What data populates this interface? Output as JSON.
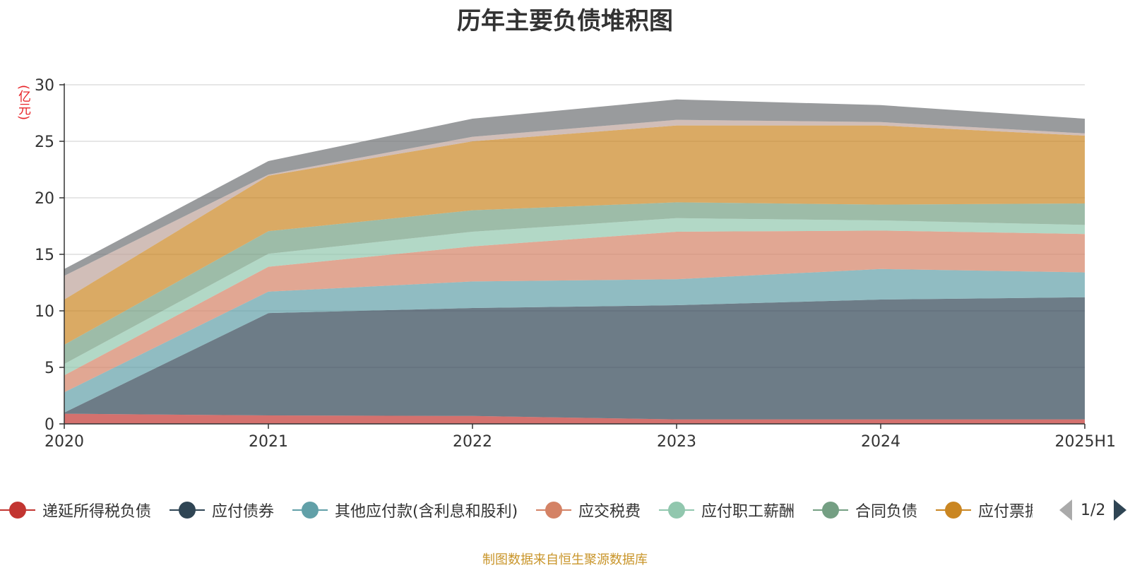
{
  "title": "历年主要负债堆积图",
  "unit_label": "(亿元)",
  "source_note": "制图数据来自恒生聚源数据库",
  "legend": {
    "page_indicator": "1/2",
    "items": [
      {
        "name": "递延所得税负债",
        "color": "#c23531"
      },
      {
        "name": "应付债券",
        "color": "#2f4554"
      },
      {
        "name": "其他应付款(含利息和股利)",
        "color": "#61a0a8"
      },
      {
        "name": "应交税费",
        "color": "#d48265"
      },
      {
        "name": "应付职工薪酬",
        "color": "#91c7ae"
      },
      {
        "name": "合同负债",
        "color": "#749f83"
      },
      {
        "name": "应付票据及应付账款",
        "color": "#ca8622"
      }
    ]
  },
  "chart_data": {
    "type": "area",
    "stacked": true,
    "categories": [
      "2020",
      "2021",
      "2022",
      "2023",
      "2024",
      "2025H1"
    ],
    "ylim": [
      0,
      30
    ],
    "yticks": [
      0,
      5,
      10,
      15,
      20,
      25,
      30
    ],
    "grid": true,
    "series": [
      {
        "name": "递延所得税负债",
        "color": "#c23531",
        "values": [
          0.9,
          0.75,
          0.7,
          0.4,
          0.4,
          0.4
        ]
      },
      {
        "name": "应付债券",
        "color": "#2f4554",
        "values": [
          0.1,
          9.05,
          9.55,
          10.1,
          10.6,
          10.8
        ]
      },
      {
        "name": "其他应付款(含利息和股利)",
        "color": "#61a0a8",
        "values": [
          1.8,
          1.9,
          2.35,
          2.3,
          2.7,
          2.2
        ]
      },
      {
        "name": "应交税费",
        "color": "#d48265",
        "values": [
          1.5,
          2.2,
          3.1,
          4.2,
          3.4,
          3.4
        ]
      },
      {
        "name": "应付职工薪酬",
        "color": "#91c7ae",
        "values": [
          1.0,
          1.15,
          1.3,
          1.2,
          0.9,
          0.8
        ]
      },
      {
        "name": "合同负债",
        "color": "#749f83",
        "values": [
          1.7,
          2.0,
          1.9,
          1.4,
          1.4,
          1.9
        ]
      },
      {
        "name": "应付票据及应付账款",
        "color": "#ca8622",
        "values": [
          4.0,
          4.9,
          6.1,
          6.8,
          7.0,
          6.0
        ]
      },
      {
        "color": "#bda29a",
        "values": [
          2.1,
          0.1,
          0.4,
          0.5,
          0.3,
          0.2
        ]
      },
      {
        "color": "#6e7074",
        "values": [
          0.6,
          1.2,
          1.6,
          1.8,
          1.5,
          1.3
        ]
      }
    ]
  }
}
